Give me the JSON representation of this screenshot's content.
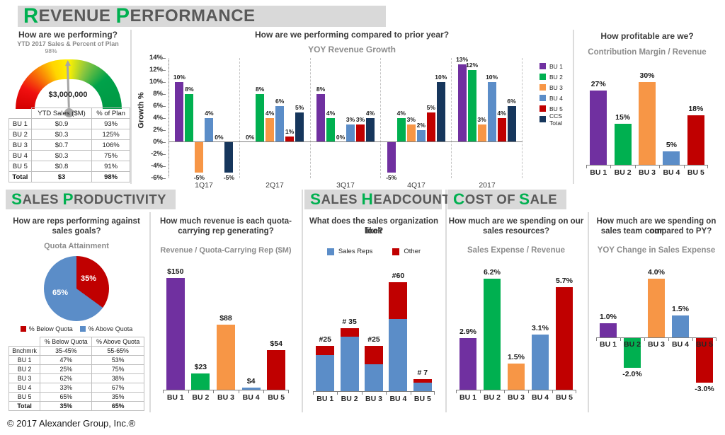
{
  "section_titles": {
    "revenue": [
      {
        "f": "R",
        "r": "EVENUE"
      },
      {
        "f": "P",
        "r": "ERFORMANCE"
      }
    ],
    "productivity": [
      {
        "f": "S",
        "r": "ALES"
      },
      {
        "f": "P",
        "r": "RODUCTIVITY"
      }
    ],
    "headcount": [
      {
        "f": "S",
        "r": "ALES"
      },
      {
        "f": "H",
        "r": "EADCOUNT"
      }
    ],
    "cost": [
      {
        "f": "C",
        "r": "OST"
      },
      {
        "f": "",
        "r": "OF"
      },
      {
        "f": "S",
        "r": "ALE"
      }
    ]
  },
  "panels": {
    "gauge": {
      "question": "How are we performing?"
    },
    "yoy": {
      "question": "How are we performing compared to prior year?"
    },
    "margin": {
      "question": "How profitable are we?"
    },
    "quota": {
      "question_line1": "How are reps performing against",
      "question_line2": "sales goals?"
    },
    "revrep": {
      "question_line1": "How much revenue is each quota-",
      "question_line2": "carrying rep generating?"
    },
    "headcount": {
      "question_line1": "What does the sales organization look",
      "question_line2": "like?"
    },
    "expense": {
      "question_line1": "How much are we spending on our",
      "question_line2": "sales resources?"
    },
    "yoychange": {
      "question_line1": "How much are we spending on our",
      "question_line2": "sales team compared to PY?"
    }
  },
  "gauge_table": {
    "col_headers": [
      "YTD Sales ($M)",
      "% of Plan"
    ],
    "rows": [
      [
        "BU 1",
        "$0.9",
        "93%"
      ],
      [
        "BU 2",
        "$0.3",
        "125%"
      ],
      [
        "BU 3",
        "$0.7",
        "106%"
      ],
      [
        "BU 4",
        "$0.3",
        "75%"
      ],
      [
        "BU 5",
        "$0.8",
        "91%"
      ],
      [
        "Total",
        "$3",
        "98%"
      ]
    ]
  },
  "quota_table": {
    "col_headers": [
      "% Below Quota",
      "% Above Quota"
    ],
    "rows": [
      [
        "Bnchmrk",
        "35-45%",
        "55-65%"
      ],
      [
        "BU 1",
        "47%",
        "53%"
      ],
      [
        "BU 2",
        "25%",
        "75%"
      ],
      [
        "BU 3",
        "62%",
        "38%"
      ],
      [
        "BU 4",
        "33%",
        "67%"
      ],
      [
        "BU 5",
        "65%",
        "35%"
      ],
      [
        "Total",
        "35%",
        "65%"
      ]
    ]
  },
  "footer": {
    "copyright": "© 2017 Alexander Group, Inc.®"
  },
  "chart_data": [
    {
      "type": "gauge",
      "title": "YTD 2017 Sales & Percent of Plan",
      "percent_label": "98%",
      "center_label": "$3,000,000",
      "value": 98,
      "range": [
        0,
        200
      ]
    },
    {
      "type": "bar",
      "grouped": true,
      "title": "YOY Revenue Growth",
      "ylabel": "Growth %",
      "ylim": [
        -6,
        14
      ],
      "ytick_step": 2,
      "legend_position": "right",
      "categories": [
        "1Q17",
        "2Q17",
        "3Q17",
        "4Q17",
        "2017"
      ],
      "series": [
        {
          "name": "BU 1",
          "color": "#7030A0",
          "values": [
            10,
            0,
            8,
            -5,
            13
          ]
        },
        {
          "name": "BU 2",
          "color": "#00B050",
          "values": [
            8,
            8,
            4,
            4,
            12
          ]
        },
        {
          "name": "BU 3",
          "color": "#F79646",
          "values": [
            -5,
            4,
            0,
            3,
            3
          ]
        },
        {
          "name": "BU 4",
          "color": "#5B8DC8",
          "values": [
            4,
            6,
            3,
            2,
            10
          ]
        },
        {
          "name": "BU 5",
          "color": "#C00000",
          "values": [
            0,
            1,
            3,
            5,
            4
          ]
        },
        {
          "name": "CCS Total",
          "color": "#16365C",
          "values": [
            -5,
            5,
            4,
            10,
            6
          ]
        }
      ],
      "labels": [
        [
          "10%",
          "0%",
          "8%",
          "-5%",
          "13%"
        ],
        [
          "8%",
          "8%",
          "4%",
          "4%",
          "12%"
        ],
        [
          "-5%",
          "4%",
          "0%",
          "3%",
          "3%"
        ],
        [
          "4%",
          "6%",
          "3%",
          "2%",
          "10%"
        ],
        [
          "0%",
          "1%",
          "3%",
          "5%",
          "4%"
        ],
        [
          "-5%",
          "5%",
          "4%",
          "10%",
          "6%"
        ]
      ]
    },
    {
      "type": "bar",
      "title": "Contribution Margin / Revenue",
      "categories": [
        "BU 1",
        "BU 2",
        "BU 3",
        "BU 4",
        "BU 5"
      ],
      "values": [
        27,
        15,
        30,
        5,
        18
      ],
      "labels": [
        "27%",
        "15%",
        "30%",
        "5%",
        "18%"
      ],
      "colors": [
        "#7030A0",
        "#00B050",
        "#F79646",
        "#5B8DC8",
        "#C00000"
      ],
      "ylim": [
        0,
        33
      ]
    },
    {
      "type": "pie",
      "title": "Quota Attainment",
      "slices": [
        {
          "label": "% Below Quota",
          "value": 35,
          "text": "35%",
          "color": "#C00000"
        },
        {
          "label": "% Above Quota",
          "value": 65,
          "text": "65%",
          "color": "#5B8DC8"
        }
      ],
      "legend_position": "bottom"
    },
    {
      "type": "bar",
      "title": "Revenue / Quota-Carrying Rep ($M)",
      "categories": [
        "BU 1",
        "BU 2",
        "BU 3",
        "BU 4",
        "BU 5"
      ],
      "values": [
        150,
        23,
        88,
        4,
        54
      ],
      "labels": [
        "$150",
        "$23",
        "$88",
        "$4",
        "$54"
      ],
      "colors": [
        "#7030A0",
        "#00B050",
        "#F79646",
        "#5B8DC8",
        "#C00000"
      ],
      "ylim": [
        0,
        160
      ]
    },
    {
      "type": "stacked-bar",
      "title": "Sales Headcount",
      "categories": [
        "BU 1",
        "BU 2",
        "BU 3",
        "BU 4",
        "BU 5"
      ],
      "series": [
        {
          "name": "Sales Reps",
          "color": "#5B8DC8",
          "values": [
            20,
            30,
            15,
            40,
            5
          ]
        },
        {
          "name": "Other",
          "color": "#C00000",
          "values": [
            5,
            5,
            10,
            20,
            2
          ]
        }
      ],
      "total_labels": [
        "#25",
        "# 35",
        "#25",
        "#60",
        "# 7"
      ],
      "ylim": [
        0,
        65
      ]
    },
    {
      "type": "bar",
      "title": "Sales Expense / Revenue",
      "categories": [
        "BU 1",
        "BU 2",
        "BU 3",
        "BU 4",
        "BU 5"
      ],
      "values": [
        2.9,
        6.2,
        1.5,
        3.1,
        5.7
      ],
      "labels": [
        "2.9%",
        "6.2%",
        "1.5%",
        "3.1%",
        "5.7%"
      ],
      "colors": [
        "#7030A0",
        "#00B050",
        "#F79646",
        "#5B8DC8",
        "#C00000"
      ],
      "ylim": [
        0,
        6.5
      ]
    },
    {
      "type": "bar",
      "title": "YOY Change in Sales Expense",
      "categories": [
        "BU 1",
        "BU 2",
        "BU 3",
        "BU 4",
        "BU 5"
      ],
      "values": [
        1.0,
        -2.0,
        4.0,
        1.5,
        -3.0
      ],
      "labels": [
        "1.0%",
        "-2.0%",
        "4.0%",
        "1.5%",
        "-3.0%"
      ],
      "colors": [
        "#7030A0",
        "#00B050",
        "#F79646",
        "#5B8DC8",
        "#C00000"
      ],
      "ylim": [
        -3.3,
        4.3
      ]
    }
  ]
}
